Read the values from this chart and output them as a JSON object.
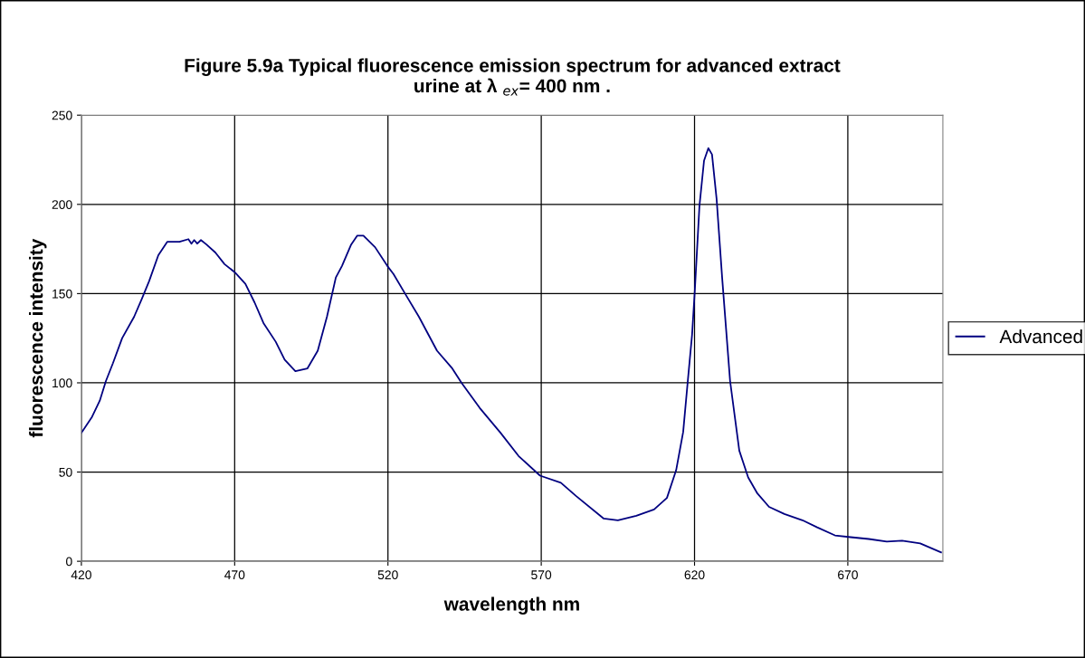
{
  "chart_data": {
    "type": "line",
    "title": "Figure 5.9a Typical fluorescence emission spectrum for advanced extract\nurine at λ $_{ex}$= 400 nm .",
    "xlabel": "wavelength nm",
    "ylabel": "fluorescence intensity",
    "xlim": [
      420,
      701
    ],
    "xticks": [
      420,
      470,
      520,
      570,
      620,
      670
    ],
    "ylim": [
      0,
      250
    ],
    "yticks": [
      0,
      50,
      100,
      150,
      200,
      250
    ],
    "grid": true,
    "legend": "right",
    "marker": "none",
    "line_style": "solid",
    "series": [
      {
        "name": "Advanced",
        "color": "#000080",
        "x": [
          420,
          423.5,
          426,
          428,
          430.3,
          433.3,
          437.2,
          439.7,
          442.1,
          445.1,
          448,
          452,
          454.9,
          455.9,
          456.8,
          457.8,
          459,
          460.8,
          463.7,
          466.7,
          470,
          473.5,
          476.5,
          479.4,
          483.4,
          486.3,
          489.8,
          493.7,
          497.1,
          500.1,
          503,
          505,
          508,
          510,
          512,
          515.8,
          519.8,
          521.8,
          525.4,
          530.1,
          536,
          541,
          544,
          549.9,
          556.7,
          562.6,
          569.6,
          576.4,
          581.4,
          590.3,
          595,
          601,
          606.8,
          611,
          614,
          616.3,
          617.8,
          619.2,
          620.1,
          621.6,
          623.1,
          624.5,
          625.7,
          627.2,
          629,
          631.6,
          634.6,
          637.5,
          640.5,
          644.3,
          649.3,
          655.2,
          660,
          665.8,
          670.9,
          676.8,
          682.7,
          687.7,
          693.6,
          700.4
        ],
        "values": [
          72,
          81,
          90,
          101,
          111,
          125,
          137,
          147,
          157,
          171.5,
          179,
          179,
          180.5,
          178,
          180,
          178,
          180,
          177.5,
          173,
          166.5,
          162,
          155.5,
          145,
          133.5,
          123,
          113,
          106.5,
          108,
          118,
          137,
          159,
          165.5,
          177.5,
          182.5,
          182.5,
          176,
          165.5,
          161,
          150.5,
          137,
          118,
          108,
          100,
          86,
          72,
          59,
          48,
          44,
          36.5,
          24,
          23,
          25.5,
          29,
          35.5,
          51,
          72.5,
          101,
          127,
          152,
          199,
          224.5,
          231.5,
          228,
          203,
          159,
          101,
          62,
          47,
          38,
          30.5,
          26.5,
          23,
          19,
          14.5,
          13.5,
          12.5,
          11,
          11.5,
          10,
          5
        ]
      }
    ]
  }
}
